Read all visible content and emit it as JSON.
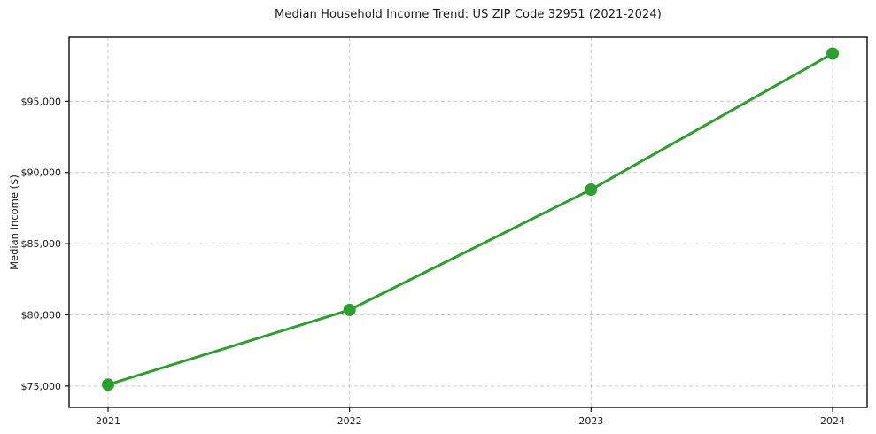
{
  "chart_data": {
    "type": "line",
    "title": "Median Household Income Trend: US ZIP Code 32951 (2021-2024)",
    "xlabel": "",
    "ylabel": "Median Income ($)",
    "categories": [
      "2021",
      "2022",
      "2023",
      "2024"
    ],
    "series": [
      {
        "name": "Median Household Income",
        "values": [
          75100,
          80350,
          88800,
          98350
        ]
      }
    ],
    "ylim": [
      73500,
      99500
    ],
    "yticks": [
      {
        "value": 75000,
        "label": "$75,000"
      },
      {
        "value": 80000,
        "label": "$80,000"
      },
      {
        "value": 85000,
        "label": "$85,000"
      },
      {
        "value": 90000,
        "label": "$90,000"
      },
      {
        "value": 95000,
        "label": "$95,000"
      }
    ],
    "grid": "dashed",
    "grid_color": "#cccccc",
    "line_color": "#2ca02c",
    "marker": "circle",
    "marker_color": "#2ca02c",
    "spine_color": "#1a1a1a",
    "background": "#ffffff",
    "legend": "none"
  }
}
